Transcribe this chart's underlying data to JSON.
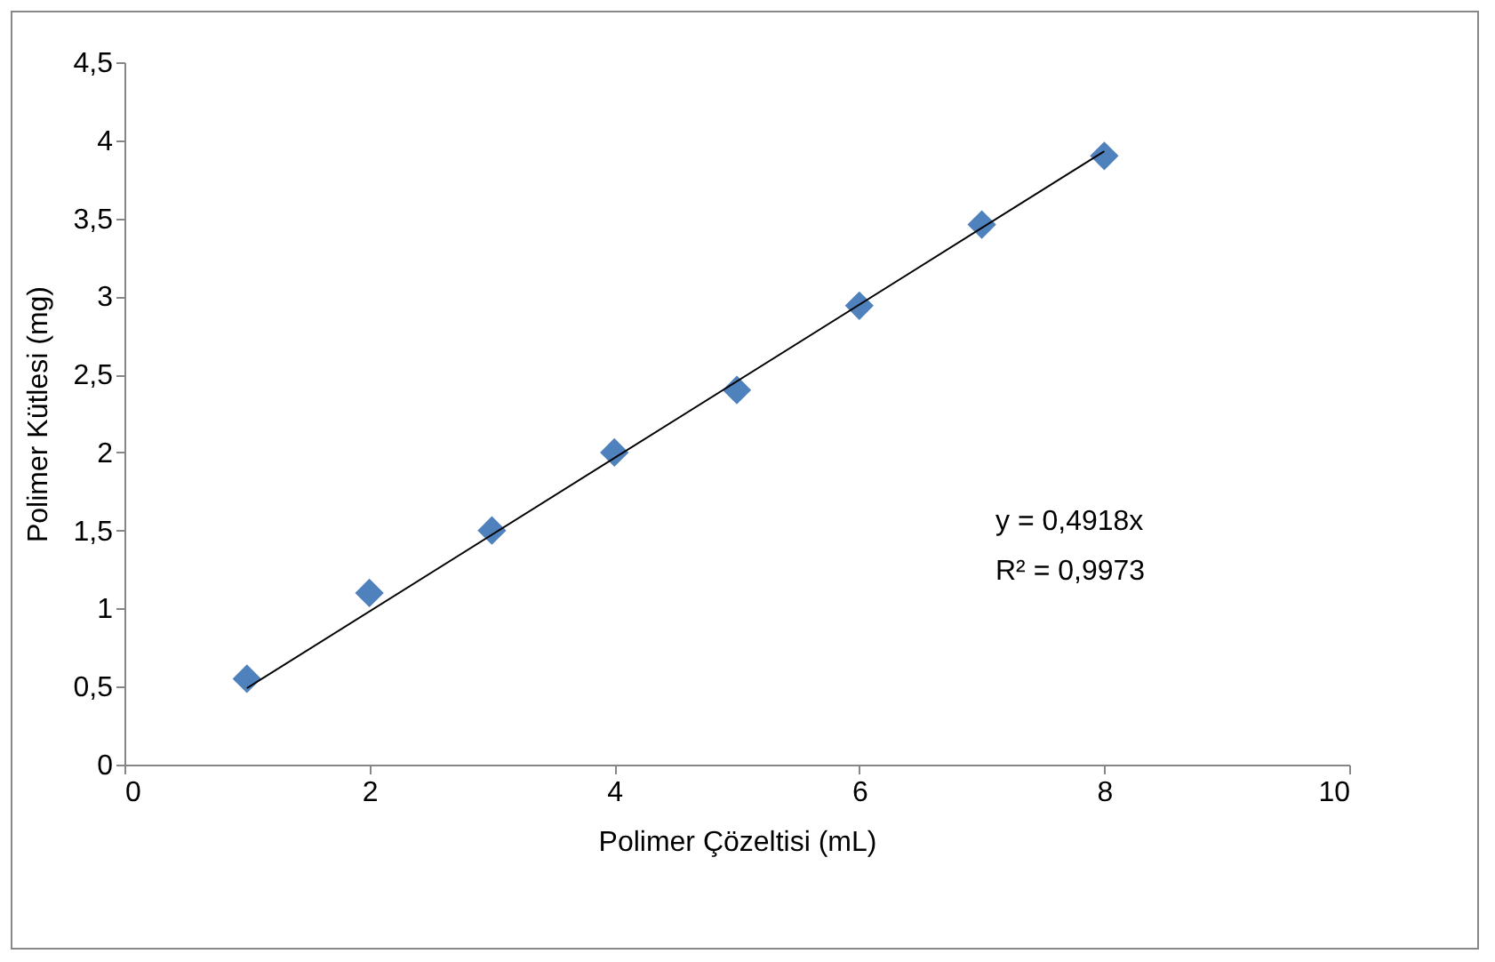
{
  "chart_data": {
    "type": "scatter",
    "xlabel": "Polimer Çözeltisi (mL)",
    "ylabel": "Polimer Kütlesi  (mg)",
    "x": [
      1,
      2,
      3,
      4,
      5,
      6,
      7,
      8
    ],
    "series": [
      {
        "color": "#4f81bd",
        "marker": "diamond",
        "values": [
          0.55,
          1.1,
          1.5,
          2.0,
          2.4,
          2.94,
          3.46,
          3.9
        ]
      },
      {
        "type": "line",
        "color": "#000000",
        "x": [
          1,
          8
        ],
        "values": [
          0.49,
          3.93
        ]
      }
    ],
    "xlim": [
      0,
      10
    ],
    "xticks": [
      0,
      2,
      4,
      6,
      8,
      10
    ],
    "ylim": [
      0,
      4.5
    ],
    "yticks": [
      0,
      {
        "value": 0.5,
        "label": "0,5"
      },
      1,
      {
        "value": 1.5,
        "label": "1,5"
      },
      2,
      {
        "value": 2.5,
        "label": "2,5"
      },
      3,
      {
        "value": 3.5,
        "label": "3,5"
      },
      4,
      {
        "value": 4.5,
        "label": "4,5"
      }
    ],
    "annotations": [
      "y = 0,4918x",
      "R² = 0,9973"
    ],
    "grid": false
  }
}
